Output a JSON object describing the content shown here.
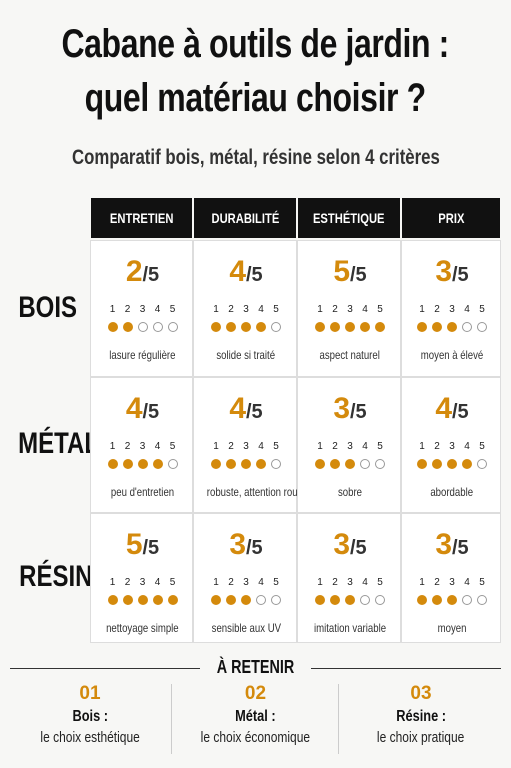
{
  "header": {
    "title_lines": [
      "Cabane à outils de jardin :",
      "quel matériau choisir ?"
    ],
    "subtitle": "Comparatif bois, métal, résine selon 4 critères"
  },
  "table": {
    "columns": [
      "ENTRETIEN",
      "DURABILITÉ",
      "ESTHÉTIQUE",
      "PRIX"
    ],
    "out_of": "/5",
    "scale": [
      1,
      2,
      3,
      4,
      5
    ],
    "rows": [
      {
        "label": "BOIS",
        "cells": [
          {
            "score": 2,
            "note": "lasure régulière"
          },
          {
            "score": 4,
            "note": "solide si traité"
          },
          {
            "score": 5,
            "note": "aspect naturel"
          },
          {
            "score": 3,
            "note": "moyen à élevé"
          }
        ]
      },
      {
        "label": "MÉTAL",
        "cells": [
          {
            "score": 4,
            "note": "peu d'entretien"
          },
          {
            "score": 4,
            "note": "robuste, attention rouille"
          },
          {
            "score": 3,
            "note": "sobre"
          },
          {
            "score": 4,
            "note": "abordable"
          }
        ]
      },
      {
        "label": "RÉSINE",
        "cells": [
          {
            "score": 5,
            "note": "nettoyage simple"
          },
          {
            "score": 3,
            "note": "sensible aux UV"
          },
          {
            "score": 3,
            "note": "imitation variable"
          },
          {
            "score": 3,
            "note": "moyen"
          }
        ]
      }
    ]
  },
  "summary": {
    "title": "À RETENIR",
    "items": [
      {
        "number": "01",
        "name": "Bois :",
        "text": "le choix esthétique"
      },
      {
        "number": "02",
        "name": "Métal :",
        "text": "le choix économique"
      },
      {
        "number": "03",
        "name": "Résine :",
        "text": "le choix pratique"
      }
    ]
  }
}
